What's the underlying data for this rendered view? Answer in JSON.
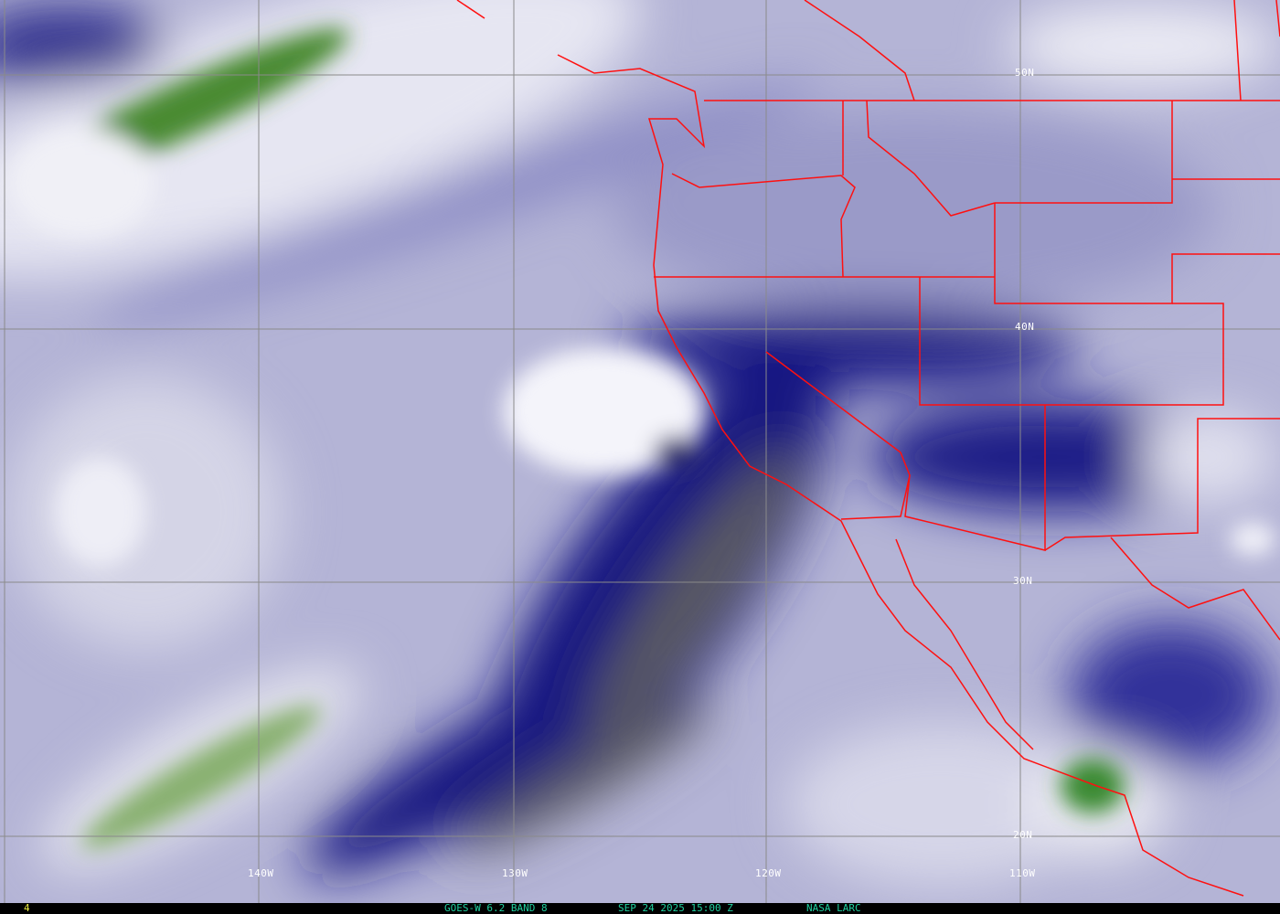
{
  "map": {
    "imagery": "water vapor satellite image",
    "colors": {
      "moist_white": "#f2f2f8",
      "mid": "#a8a8d0",
      "dry_navy": "#10107a",
      "very_dry_olive": "#8a8a3a",
      "cold_green": "#4a8a30",
      "borders": "#ff1010",
      "grid": "#888888"
    },
    "longitude_labels": [
      "140W",
      "130W",
      "120W",
      "110W"
    ],
    "latitude_labels": [
      "50N",
      "40N",
      "30N",
      "20N"
    ]
  },
  "status_bar": {
    "frame_number": "4",
    "product": "GOES-W 6.2 BAND 8",
    "datetime": "SEP 24 2025 15:00 Z",
    "source": "NASA LARC"
  }
}
